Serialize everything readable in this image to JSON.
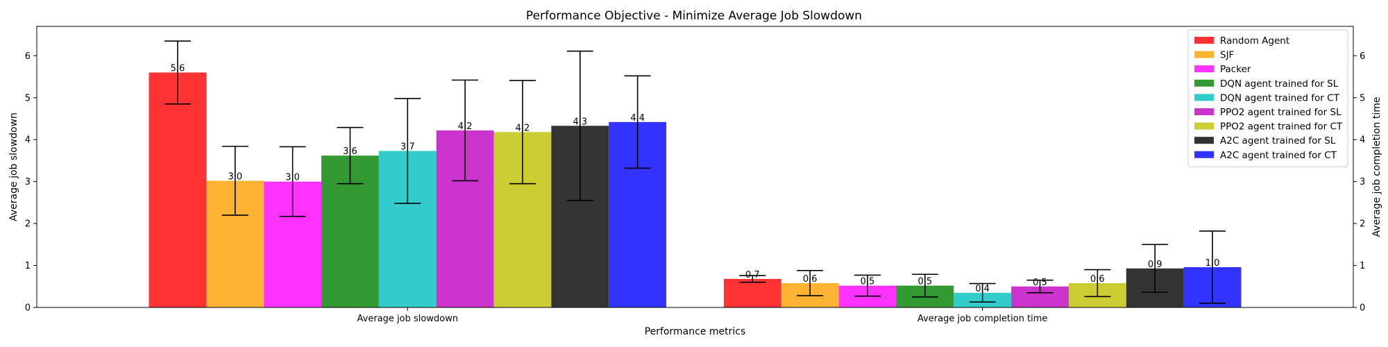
{
  "chart_data": {
    "type": "bar",
    "title": "Performance Objective - Minimize Average Job Slowdown",
    "xlabel": "Performance metrics",
    "ylabel": "Average job slowdown",
    "ylabel_right": "Average job completion time",
    "ylim": [
      0,
      6.7
    ],
    "yticks": [
      0,
      1,
      2,
      3,
      4,
      5,
      6
    ],
    "categories": [
      "Average job slowdown",
      "Average job completion time"
    ],
    "legend_position": "top-right",
    "grid": false,
    "series": [
      {
        "name": "Random Agent",
        "color": "#ff3333",
        "values": [
          5.6,
          0.68
        ],
        "errors": [
          0.75,
          0.08
        ],
        "labels": [
          "5.6",
          "0.7"
        ]
      },
      {
        "name": "SJF",
        "color": "#ffb333",
        "values": [
          3.02,
          0.58
        ],
        "errors": [
          0.82,
          0.3
        ],
        "labels": [
          "3.0",
          "0.6"
        ]
      },
      {
        "name": "Packer",
        "color": "#ff33ff",
        "values": [
          3.0,
          0.52
        ],
        "errors": [
          0.83,
          0.25
        ],
        "labels": [
          "3.0",
          "0.5"
        ]
      },
      {
        "name": "DQN agent trained for SL",
        "color": "#339933",
        "values": [
          3.62,
          0.52
        ],
        "errors": [
          0.67,
          0.27
        ],
        "labels": [
          "3.6",
          "0.5"
        ]
      },
      {
        "name": "DQN agent trained for CT",
        "color": "#33cccc",
        "values": [
          3.73,
          0.35
        ],
        "errors": [
          1.25,
          0.22
        ],
        "labels": [
          "3.7",
          "0.4"
        ]
      },
      {
        "name": "PPO2 agent trained for SL",
        "color": "#cc33cc",
        "values": [
          4.22,
          0.5
        ],
        "errors": [
          1.2,
          0.15
        ],
        "labels": [
          "4.2",
          "0.5"
        ]
      },
      {
        "name": "PPO2 agent trained for CT",
        "color": "#cccc33",
        "values": [
          4.18,
          0.58
        ],
        "errors": [
          1.23,
          0.32
        ],
        "labels": [
          "4.2",
          "0.6"
        ]
      },
      {
        "name": "A2C agent trained for SL",
        "color": "#333333",
        "values": [
          4.33,
          0.93
        ],
        "errors": [
          1.78,
          0.57
        ],
        "labels": [
          "4.3",
          "0.9"
        ]
      },
      {
        "name": "A2C agent trained for CT",
        "color": "#3333ff",
        "values": [
          4.42,
          0.96
        ],
        "errors": [
          1.1,
          0.86
        ],
        "labels": [
          "4.4",
          "1.0"
        ]
      }
    ]
  }
}
